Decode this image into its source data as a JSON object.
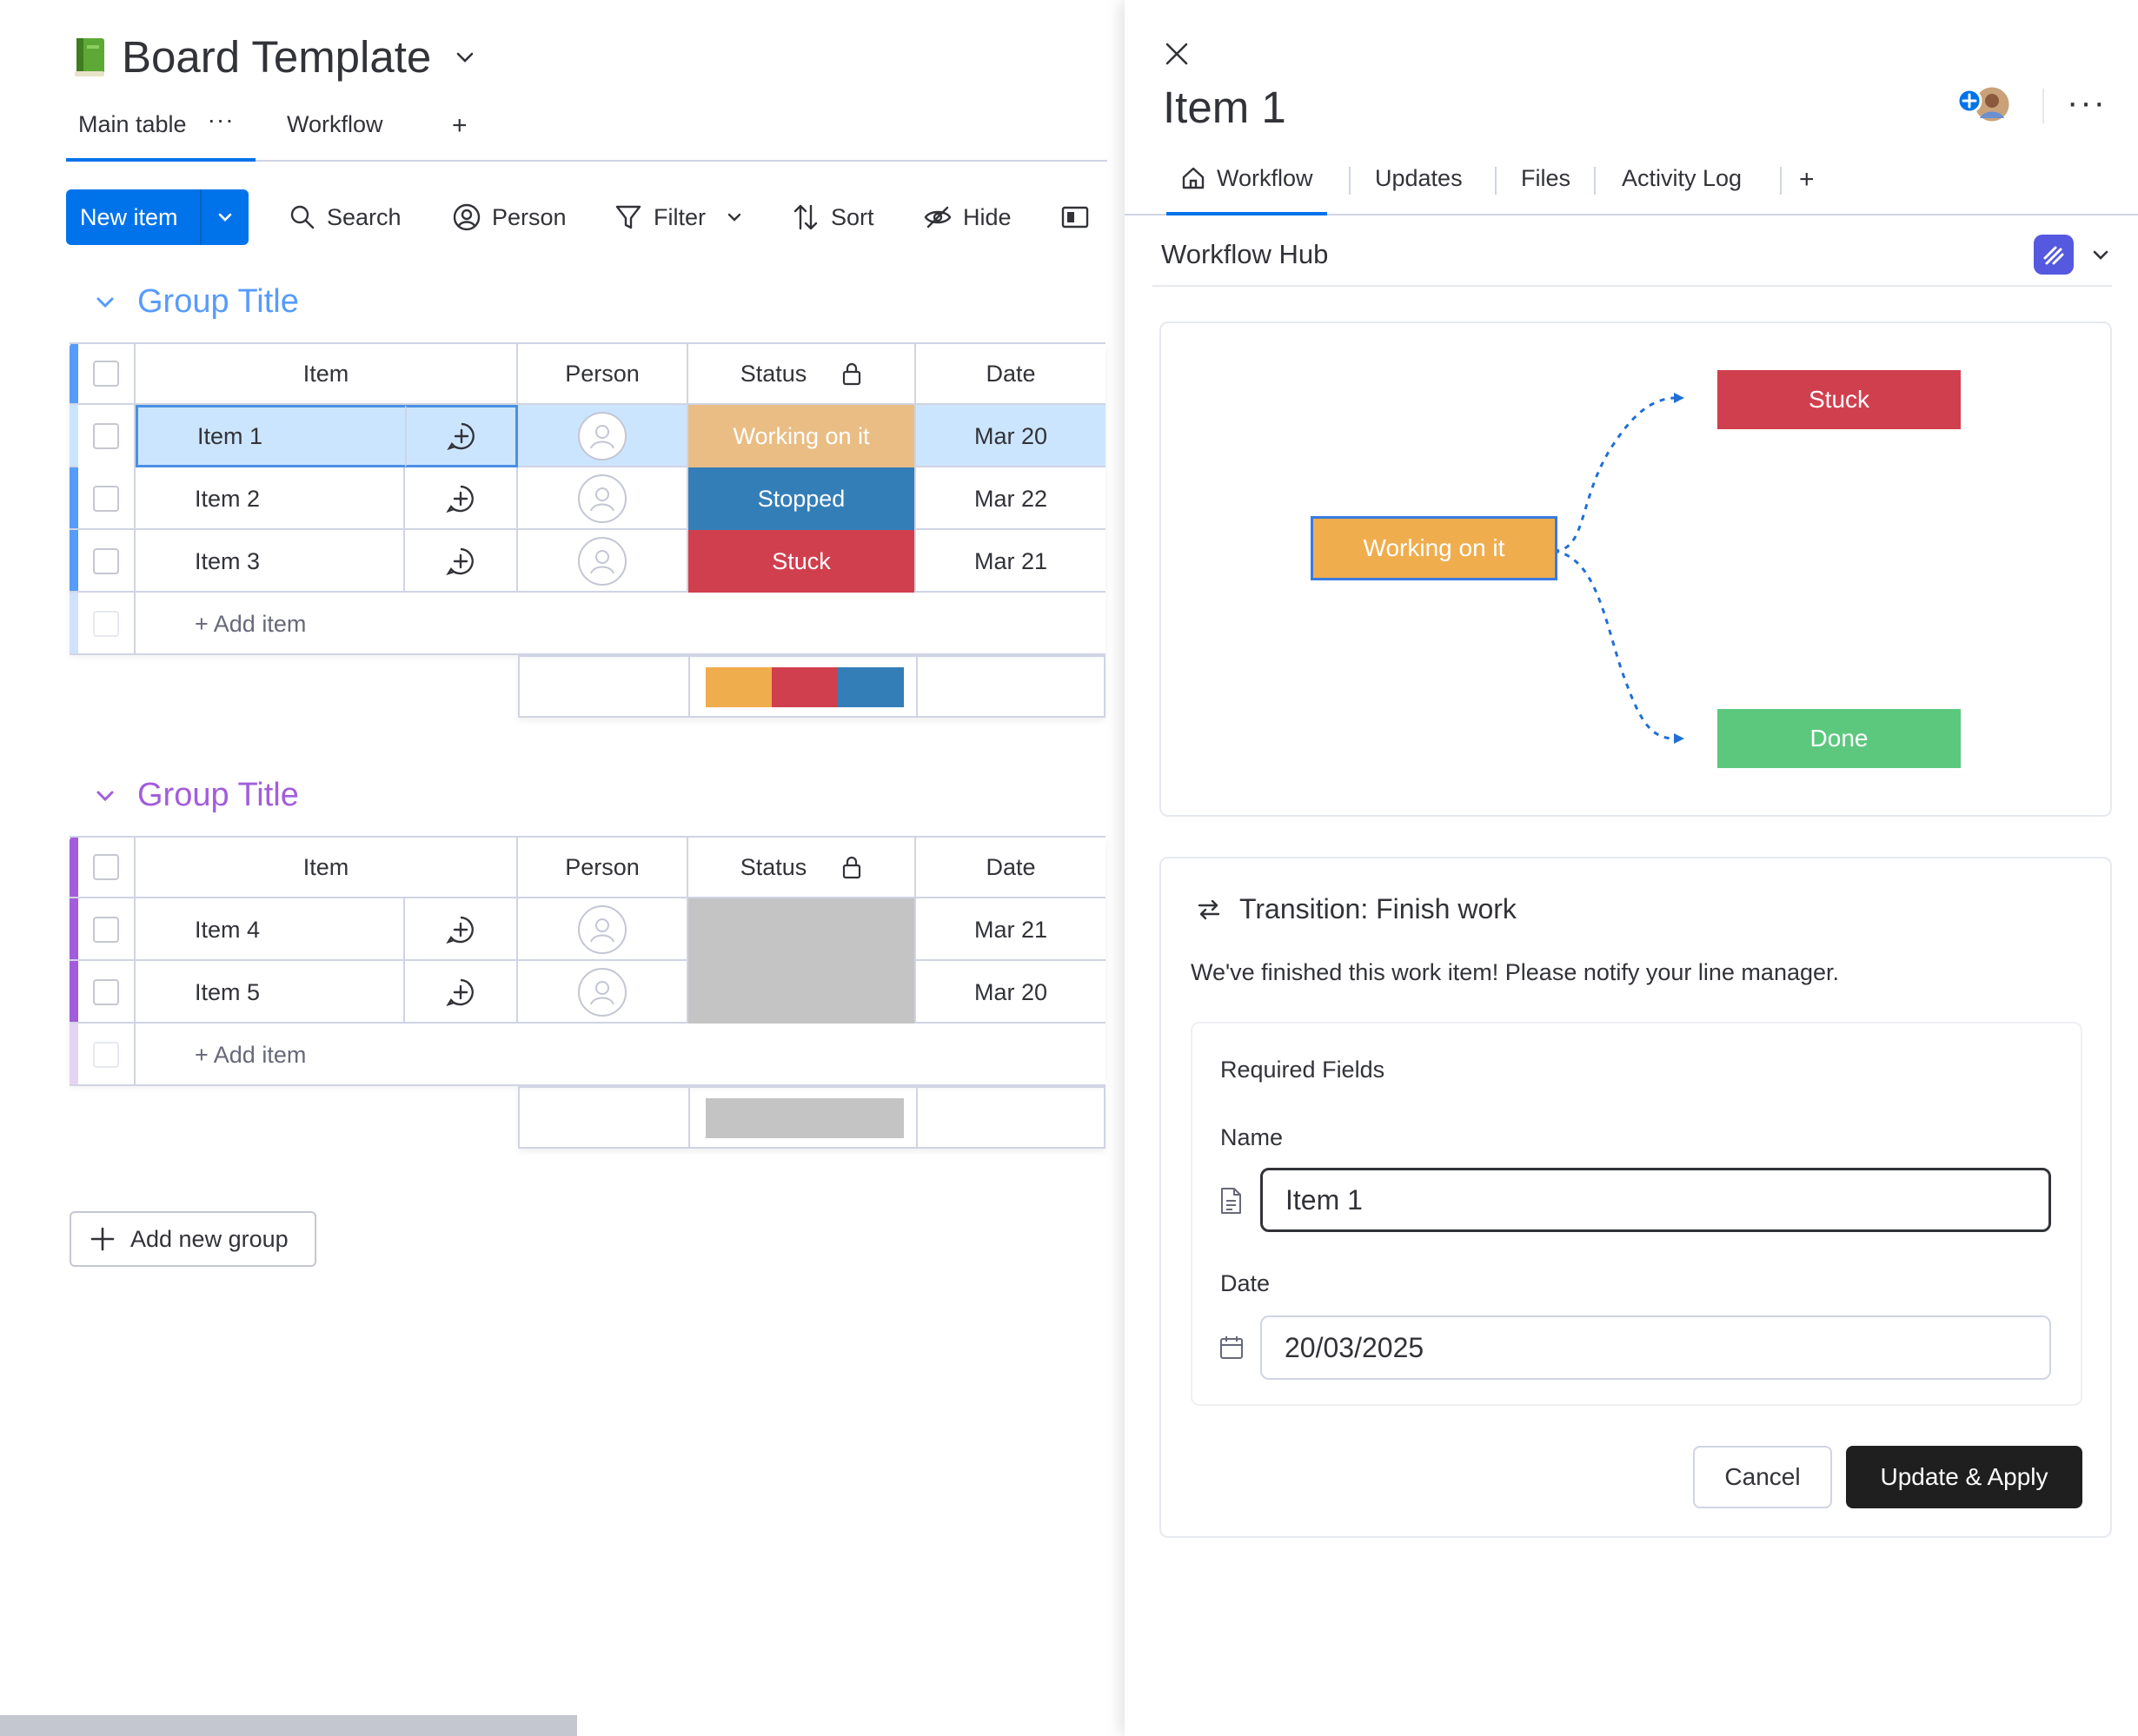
{
  "board": {
    "title": "Board Template",
    "views": [
      {
        "label": "Main table",
        "more": "···"
      },
      {
        "label": "Workflow"
      },
      {
        "label": "+"
      }
    ]
  },
  "toolbar": {
    "new_item": "New item",
    "search": "Search",
    "person": "Person",
    "filter": "Filter",
    "sort": "Sort",
    "hide": "Hide"
  },
  "columns": {
    "item": "Item",
    "person": "Person",
    "status": "Status",
    "date": "Date"
  },
  "groups": [
    {
      "title": "Group Title",
      "color": "#579bfc",
      "rows": [
        {
          "name": "Item 1",
          "status": "Working on it",
          "status_color": "#e9bd84",
          "date": "Mar 20"
        },
        {
          "name": "Item 2",
          "status": "Stopped",
          "status_color": "#347eb8",
          "date": "Mar 22"
        },
        {
          "name": "Item 3",
          "status": "Stuck",
          "status_color": "#d03f4e",
          "date": "Mar 21"
        }
      ],
      "add_item": "+ Add item",
      "status_summary": [
        {
          "color": "#f0ad4e",
          "fraction": 0.3333
        },
        {
          "color": "#d03f4e",
          "fraction": 0.3333
        },
        {
          "color": "#347eb8",
          "fraction": 0.3333
        }
      ]
    },
    {
      "title": "Group Title",
      "color": "#a25ddc",
      "rows": [
        {
          "name": "Item 4",
          "status": "",
          "status_color": "#c4c4c4",
          "date": "Mar 21"
        },
        {
          "name": "Item 5",
          "status": "",
          "status_color": "#c4c4c4",
          "date": "Mar 20"
        }
      ],
      "add_item": "+ Add item",
      "status_summary": [
        {
          "color": "#c4c4c4",
          "fraction": 1.0
        }
      ]
    }
  ],
  "add_group": "Add new group",
  "panel": {
    "title": "Item 1",
    "more": "···",
    "tabs": [
      "Workflow",
      "Updates",
      "Files",
      "Activity Log",
      "+"
    ],
    "hub_title": "Workflow Hub",
    "workflow": {
      "current": {
        "label": "Working on it",
        "color": "#f0ad4e"
      },
      "targets": [
        {
          "label": "Stuck",
          "color": "#d03f4e"
        },
        {
          "label": "Done",
          "color": "#5cc87e"
        }
      ]
    },
    "transition": {
      "title": "Transition: Finish work",
      "description": "We've finished this work item! Please notify your line manager.",
      "required_title": "Required Fields",
      "name_label": "Name",
      "name_value": "Item 1",
      "date_label": "Date",
      "date_value": "20/03/2025",
      "cancel": "Cancel",
      "apply": "Update & Apply"
    }
  }
}
